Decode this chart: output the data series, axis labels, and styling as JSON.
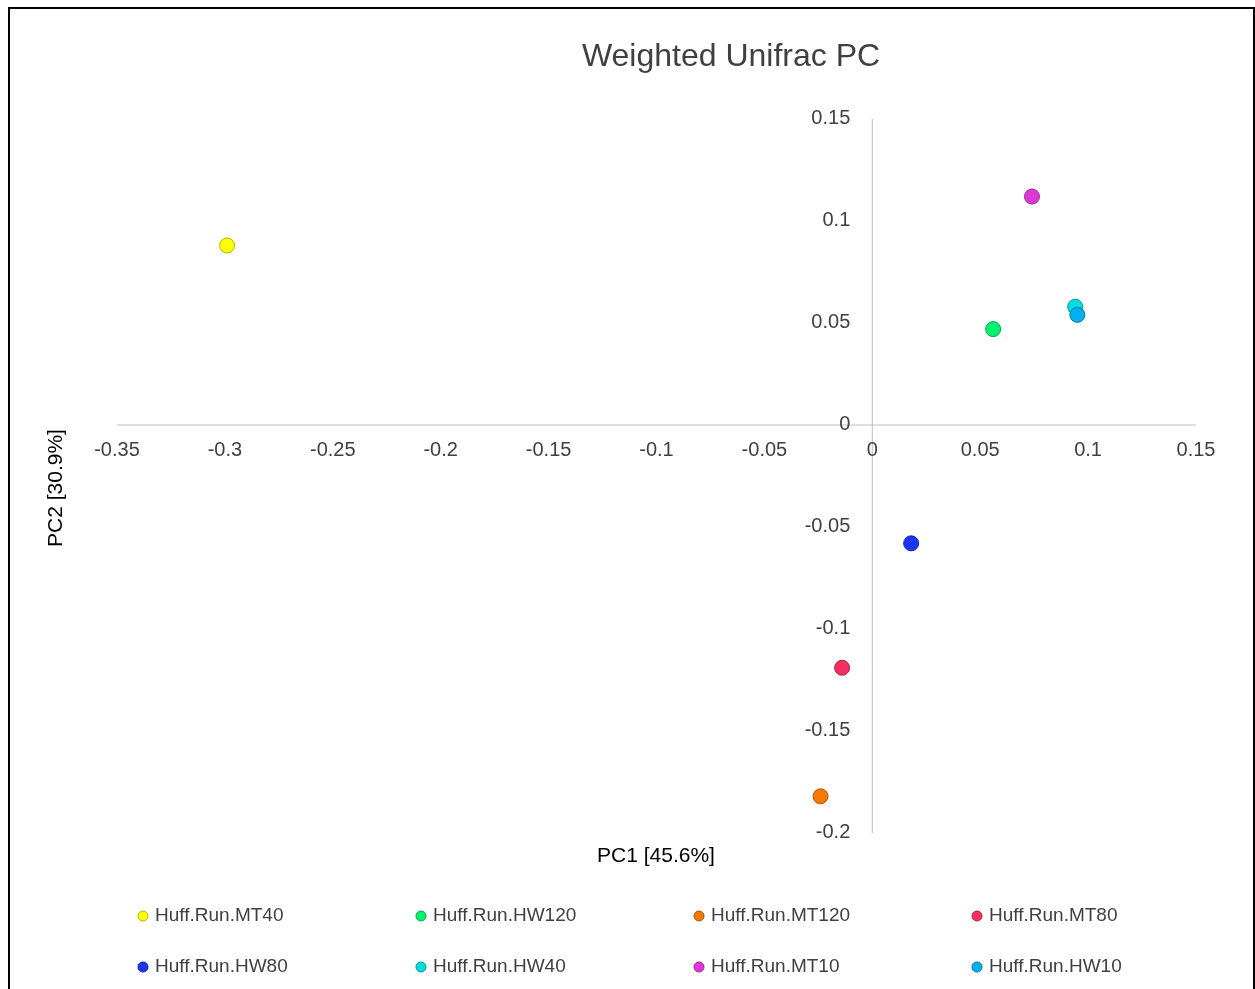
{
  "chart_data": {
    "type": "scatter",
    "title": "Weighted Unifrac PC",
    "xlabel": "PC1 [45.6%]",
    "ylabel": "PC2 [30.9%]",
    "xlim": [
      -0.35,
      0.15
    ],
    "xticks": [
      -0.35,
      -0.3,
      -0.25,
      -0.2,
      -0.15,
      -0.1,
      -0.05,
      0,
      0.05,
      0.1,
      0.15
    ],
    "ylim": [
      -0.2,
      0.15
    ],
    "yticks": [
      -0.2,
      -0.15,
      -0.1,
      -0.05,
      0,
      0.05,
      0.1,
      0.15
    ],
    "marker": "circle",
    "legend": "bottom",
    "grid": false,
    "series": [
      {
        "name": "Huff.Run.MT40",
        "color": "#ffff00",
        "x": [
          -0.299
        ],
        "values": [
          0.088
        ]
      },
      {
        "name": "Huff.Run.HW120",
        "color": "#00f070",
        "x": [
          0.056
        ],
        "values": [
          0.047
        ]
      },
      {
        "name": "Huff.Run.MT120",
        "color": "#f57a05",
        "x": [
          -0.024
        ],
        "values": [
          -0.182
        ]
      },
      {
        "name": "Huff.Run.MT80",
        "color": "#f53060",
        "x": [
          -0.014
        ],
        "values": [
          -0.119
        ]
      },
      {
        "name": "Huff.Run.HW80",
        "color": "#1a35f5",
        "x": [
          0.018
        ],
        "values": [
          -0.058
        ]
      },
      {
        "name": "Huff.Run.HW40",
        "color": "#00dde0",
        "x": [
          0.094
        ],
        "values": [
          0.058
        ]
      },
      {
        "name": "Huff.Run.MT10",
        "color": "#e038d8",
        "x": [
          0.074
        ],
        "values": [
          0.112
        ]
      },
      {
        "name": "Huff.Run.HW10",
        "color": "#00b0f0",
        "x": [
          0.095
        ],
        "values": [
          0.054
        ]
      }
    ]
  }
}
